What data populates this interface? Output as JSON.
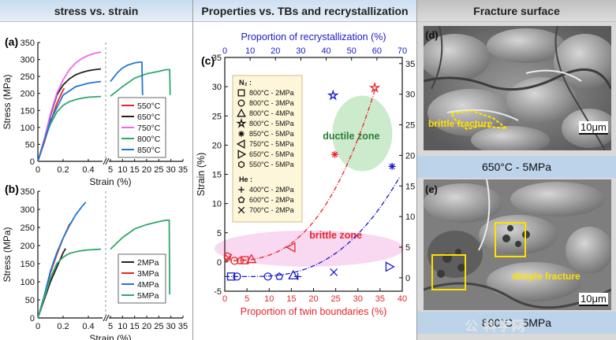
{
  "headers": {
    "left": "stress vs. strain",
    "middle": "Properties vs. TBs and recrystallization",
    "right": "Fracture surface"
  },
  "panel_labels": {
    "a": "(a)",
    "b": "(b)",
    "c": "(c)",
    "d": "(d)",
    "e": "(e)"
  },
  "fracture": {
    "d_annotation": "brittle fracture",
    "d_scale": "10μm",
    "d_caption": "650°C - 5MPa",
    "e_annotation": "dimple fracture",
    "e_scale": "10μm",
    "e_caption": "800°C - 5MPa",
    "watermark": "公 科学网"
  },
  "colors": {
    "red": "#e8242a",
    "black": "#222222",
    "magenta": "#ee66ee",
    "green": "#2ea86a",
    "blue": "#1f77d4",
    "darkblue": "#1a1acc"
  },
  "chart_data": [
    {
      "id": "a",
      "type": "line",
      "xlabel": "Strain (%)",
      "ylabel": "Stress (MPa)",
      "ylim": [
        0,
        350
      ],
      "yticks": [
        0,
        50,
        100,
        150,
        200,
        250,
        300,
        350
      ],
      "x_broken_axis": {
        "left_range": [
          0,
          0.5
        ],
        "left_ticks": [
          0,
          0.2,
          0.4
        ],
        "right_range": [
          5,
          35
        ],
        "right_ticks": [
          5,
          10,
          15,
          20,
          25,
          30,
          35
        ]
      },
      "legend": {
        "position": "right-center"
      },
      "series": [
        {
          "name": "550°C",
          "color": "red",
          "x": [
            0,
            0.05,
            0.1,
            0.15,
            0.2,
            0.21
          ],
          "y": [
            0,
            55,
            115,
            170,
            210,
            215
          ]
        },
        {
          "name": "650°C",
          "color": "black",
          "x": [
            0,
            0.05,
            0.1,
            0.15,
            0.2,
            0.25,
            0.3,
            0.35,
            0.4,
            0.45,
            0.5
          ],
          "y": [
            0,
            60,
            135,
            195,
            225,
            243,
            255,
            262,
            267,
            270,
            272
          ]
        },
        {
          "name": "750°C",
          "color": "magenta",
          "x": [
            0,
            0.05,
            0.1,
            0.15,
            0.2,
            0.25,
            0.3,
            0.35,
            0.4,
            0.45,
            0.5
          ],
          "y": [
            0,
            65,
            140,
            200,
            240,
            270,
            290,
            303,
            312,
            318,
            322
          ]
        },
        {
          "name": "800°C",
          "color": "green",
          "x": [
            0,
            0.05,
            0.1,
            0.15,
            0.2,
            0.25,
            0.3,
            0.35,
            0.4,
            0.45,
            0.5,
            5,
            10,
            15,
            20,
            25,
            28,
            29.5,
            29.7
          ],
          "y": [
            0,
            60,
            110,
            145,
            165,
            176,
            182,
            186,
            189,
            190,
            191,
            192,
            220,
            245,
            258,
            265,
            270,
            270,
            195
          ]
        },
        {
          "name": "850°C",
          "color": "blue",
          "x": [
            0,
            0.1,
            0.2,
            0.3,
            0.4,
            0.45,
            0.5,
            5,
            8,
            10,
            12,
            15,
            17,
            18,
            18.3
          ],
          "y": [
            0,
            120,
            195,
            220,
            230,
            233,
            235,
            235,
            262,
            275,
            283,
            290,
            292,
            292,
            195
          ]
        }
      ]
    },
    {
      "id": "b",
      "type": "line",
      "xlabel": "Strain (%)",
      "ylabel": "Stress (MPa)",
      "ylim": [
        0,
        350
      ],
      "yticks": [
        0,
        50,
        100,
        150,
        200,
        250,
        300,
        350
      ],
      "x_broken_axis": {
        "left_range": [
          0,
          0.5
        ],
        "left_ticks": [
          0,
          0.2,
          0.4
        ],
        "right_range": [
          5,
          35
        ],
        "right_ticks": [
          5,
          10,
          15,
          20,
          25,
          30,
          35
        ]
      },
      "legend": {
        "position": "bottom-right"
      },
      "series": [
        {
          "name": "2MPa",
          "color": "black",
          "x": [
            0,
            0.05,
            0.1,
            0.15,
            0.2,
            0.22
          ],
          "y": [
            0,
            50,
            100,
            140,
            180,
            192
          ]
        },
        {
          "name": "3MPa",
          "color": "red",
          "x": [
            0,
            0.05,
            0.1,
            0.15,
            0.2,
            0.25,
            0.27
          ],
          "y": [
            0,
            60,
            125,
            175,
            220,
            258,
            265
          ]
        },
        {
          "name": "4MPa",
          "color": "blue",
          "x": [
            0,
            0.05,
            0.1,
            0.15,
            0.2,
            0.25,
            0.3,
            0.35,
            0.38
          ],
          "y": [
            0,
            60,
            130,
            180,
            220,
            255,
            285,
            308,
            320
          ]
        },
        {
          "name": "5MPa",
          "color": "green",
          "x": [
            0,
            0.05,
            0.1,
            0.15,
            0.2,
            0.25,
            0.3,
            0.35,
            0.4,
            0.45,
            0.5,
            5,
            10,
            15,
            20,
            25,
            28,
            29.3,
            29.5
          ],
          "y": [
            0,
            55,
            110,
            150,
            168,
            178,
            183,
            186,
            188,
            189,
            190,
            190,
            222,
            246,
            258,
            266,
            270,
            270,
            65
          ]
        }
      ]
    },
    {
      "id": "c",
      "type": "scatter",
      "xlabel": "Proportion of twin boundaries (%)",
      "x2label": "Proportion of recrystallization (%)",
      "ylabel": "Strain (%)",
      "xlim": [
        0,
        40
      ],
      "xticks": [
        0,
        5,
        10,
        15,
        20,
        25,
        30,
        35,
        40
      ],
      "x2lim": [
        0,
        70
      ],
      "x2ticks": [
        0,
        10,
        20,
        30,
        40,
        50,
        60,
        70
      ],
      "ylim": [
        -5,
        35
      ],
      "yticks": [
        -5,
        0,
        5,
        10,
        15,
        20,
        25,
        30,
        35
      ],
      "y2lim": [
        -2.2,
        36
      ],
      "y2ticks": [
        0,
        5,
        10,
        15,
        20,
        25,
        30,
        35
      ],
      "legend_title_1": "N₂ :",
      "legend_title_2": "He :",
      "legend": [
        {
          "marker": "square",
          "label": "800°C - 2MPa"
        },
        {
          "marker": "circle",
          "label": "800°C - 3MPa"
        },
        {
          "marker": "triangle-up",
          "label": "800°C - 4MPa"
        },
        {
          "marker": "star",
          "label": "800°C - 5MPa"
        },
        {
          "marker": "asterisk",
          "label": "850°C - 5MPa"
        },
        {
          "marker": "triangle-left",
          "label": "750°C - 5MPa"
        },
        {
          "marker": "triangle-right",
          "label": "650°C - 5MPa"
        },
        {
          "marker": "hexagon",
          "label": "550°C - 5MPa"
        },
        {
          "marker": "plus",
          "label": "400°C - 2MPa"
        },
        {
          "marker": "pentagon",
          "label": "600°C - 2MPa"
        },
        {
          "marker": "x",
          "label": "700°C - 2MPa"
        }
      ],
      "zones": [
        {
          "label": "ductile  zone",
          "color": "#8fd18f"
        },
        {
          "label": "brittle  zone",
          "color": "#f2a8e0"
        }
      ],
      "twin_boundary_points": [
        {
          "marker": "hexagon",
          "x": 0.6,
          "y": 1.0
        },
        {
          "marker": "x",
          "x": 0.8,
          "y": 0.7
        },
        {
          "marker": "circle",
          "x": 2.2,
          "y": 0.2
        },
        {
          "marker": "pentagon",
          "x": 3.5,
          "y": 0.2
        },
        {
          "marker": "square",
          "x": 4.5,
          "y": 0.3
        },
        {
          "marker": "triangle-up",
          "x": 6.0,
          "y": 0.5
        },
        {
          "marker": "triangle-left",
          "x": 15.0,
          "y": 2.5
        },
        {
          "marker": "asterisk",
          "x": 24.8,
          "y": 18.4
        },
        {
          "marker": "star",
          "x": 33.8,
          "y": 29.8
        }
      ],
      "recrystallization_points": [
        {
          "marker": "square",
          "x2": 2.5,
          "y2": 0.2
        },
        {
          "marker": "circle",
          "x2": 4.8,
          "y2": 0.2
        },
        {
          "marker": "circle",
          "x2": 17.0,
          "y2": 0.2
        },
        {
          "marker": "pentagon",
          "x2": 21.5,
          "y2": 0.2
        },
        {
          "marker": "triangle-up",
          "x2": 27.0,
          "y2": 0.4
        },
        {
          "marker": "plus",
          "x2": 28.8,
          "y2": 0.2
        },
        {
          "marker": "x",
          "x2": 43.0,
          "y2": 0.9
        },
        {
          "marker": "star",
          "x2": 42.7,
          "y2": 29.8
        },
        {
          "marker": "asterisk",
          "x2": 66.0,
          "y2": 18.2
        },
        {
          "marker": "triangle-right",
          "x2": 65.0,
          "y2": 1.8
        }
      ]
    }
  ]
}
